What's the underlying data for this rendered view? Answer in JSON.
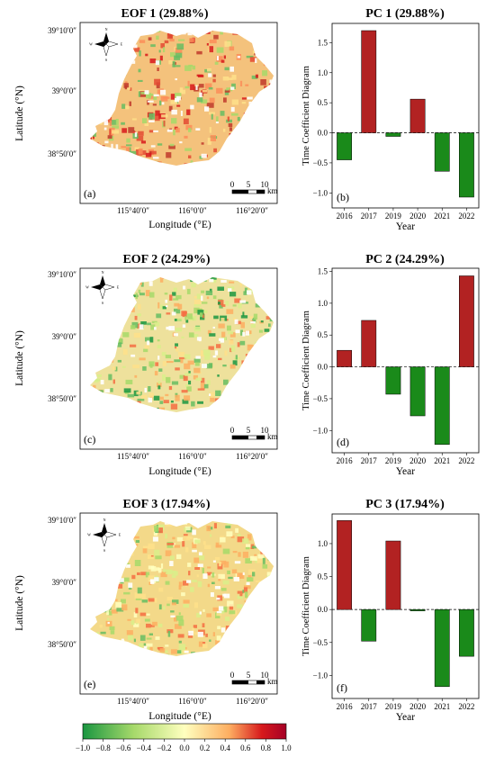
{
  "colors": {
    "positive": "#b22222",
    "negative": "#1a8a1a",
    "colormap": [
      "#1a9641",
      "#a6d96a",
      "#ffffbf",
      "#fdae61",
      "#d7191c",
      "#a50026"
    ]
  },
  "maps": [
    {
      "title": "EOF 1 (29.88%)",
      "panel": "(a)",
      "theme": "red"
    },
    {
      "title": "EOF 2 (24.29%)",
      "panel": "(c)",
      "theme": "mixed"
    },
    {
      "title": "EOF 3 (17.94%)",
      "panel": "(e)",
      "theme": "yellow"
    }
  ],
  "map_axes": {
    "ylabel": "Latitude (°N)",
    "xlabel": "Longitude (°E)",
    "lat_ticks": [
      "39°10′0″",
      "39°0′0″",
      "38°50′0″"
    ],
    "lon_ticks": [
      "115°40′0″",
      "116°0′0″",
      "116°20′0″"
    ],
    "scalebar_ticks": [
      "0",
      "5",
      "10"
    ],
    "scalebar_unit": "km",
    "compass": [
      "N",
      "S",
      "E",
      "W"
    ]
  },
  "colorbar": {
    "ticks": [
      "−1.0",
      "−0.8",
      "−0.6",
      "−0.4",
      "−0.2",
      "0.0",
      "0.2",
      "0.4",
      "0.6",
      "0.8",
      "1.0"
    ]
  },
  "chart_data": [
    {
      "type": "bar",
      "title": "PC 1 (29.88%)",
      "panel": "(b)",
      "categories": [
        "2016",
        "2017",
        "2019",
        "2020",
        "2021",
        "2022"
      ],
      "values": [
        -0.45,
        1.7,
        -0.06,
        0.56,
        -0.64,
        -1.07
      ],
      "xlabel": "Year",
      "ylabel": "Time Coefficient Diagram",
      "ylim": [
        -1.25,
        1.82
      ],
      "yticks": [
        -1.0,
        -0.5,
        0.0,
        0.5,
        1.0,
        1.5
      ],
      "ytick_labels": [
        "−1.0",
        "−0.5",
        "0.0",
        "0.5",
        "1.0",
        "1.5"
      ]
    },
    {
      "type": "bar",
      "title": "PC 2 (24.29%)",
      "panel": "(d)",
      "categories": [
        "2016",
        "2017",
        "2019",
        "2020",
        "2021",
        "2022"
      ],
      "values": [
        0.26,
        0.73,
        -0.43,
        -0.77,
        -1.22,
        1.43
      ],
      "xlabel": "Year",
      "ylabel": "Time Coefficient Diagram",
      "ylim": [
        -1.35,
        1.55
      ],
      "yticks": [
        -1.0,
        -0.5,
        0.0,
        0.5,
        1.0,
        1.5
      ],
      "ytick_labels": [
        "−1.0",
        "−0.5",
        "0.0",
        "0.5",
        "1.0",
        "1.5"
      ]
    },
    {
      "type": "bar",
      "title": "PC 3 (17.94%)",
      "panel": "(f)",
      "categories": [
        "2016",
        "2017",
        "2019",
        "2020",
        "2021",
        "2022"
      ],
      "values": [
        1.35,
        -0.48,
        1.04,
        -0.02,
        -1.17,
        -0.71
      ],
      "xlabel": "Year",
      "ylabel": "Time Coefficient Diagram",
      "ylim": [
        -1.35,
        1.45
      ],
      "yticks": [
        -1.0,
        -0.5,
        0.0,
        0.5,
        1.0
      ],
      "ytick_labels": [
        "−1.0",
        "−0.5",
        "0.0",
        "0.5",
        "1.0"
      ]
    }
  ]
}
